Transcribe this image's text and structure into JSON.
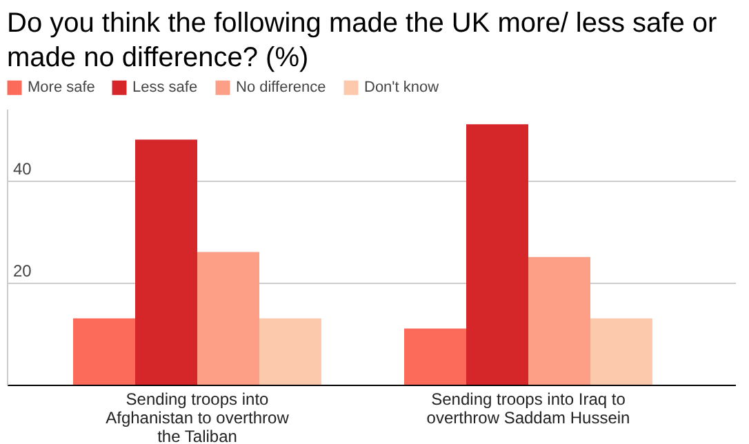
{
  "chart_data": {
    "type": "bar",
    "title": "Do you think the following made the UK more/ less safe or made no difference? (%)",
    "categories": [
      "Sending troops into Afghanistan to overthrow the Taliban",
      "Sending troops into Iraq to overthrow Saddam Hussein"
    ],
    "series": [
      {
        "name": "More safe",
        "color": "#fc6a5a",
        "values": [
          13,
          11
        ]
      },
      {
        "name": "Less safe",
        "color": "#d5262a",
        "values": [
          48,
          51
        ]
      },
      {
        "name": "No difference",
        "color": "#fc9f86",
        "values": [
          26,
          25
        ]
      },
      {
        "name": "Don't know",
        "color": "#fdc9ad",
        "values": [
          13,
          13
        ]
      }
    ],
    "ylim": [
      0,
      54
    ],
    "yticks": [
      20,
      40
    ],
    "grid": "y",
    "legend": "top left"
  }
}
